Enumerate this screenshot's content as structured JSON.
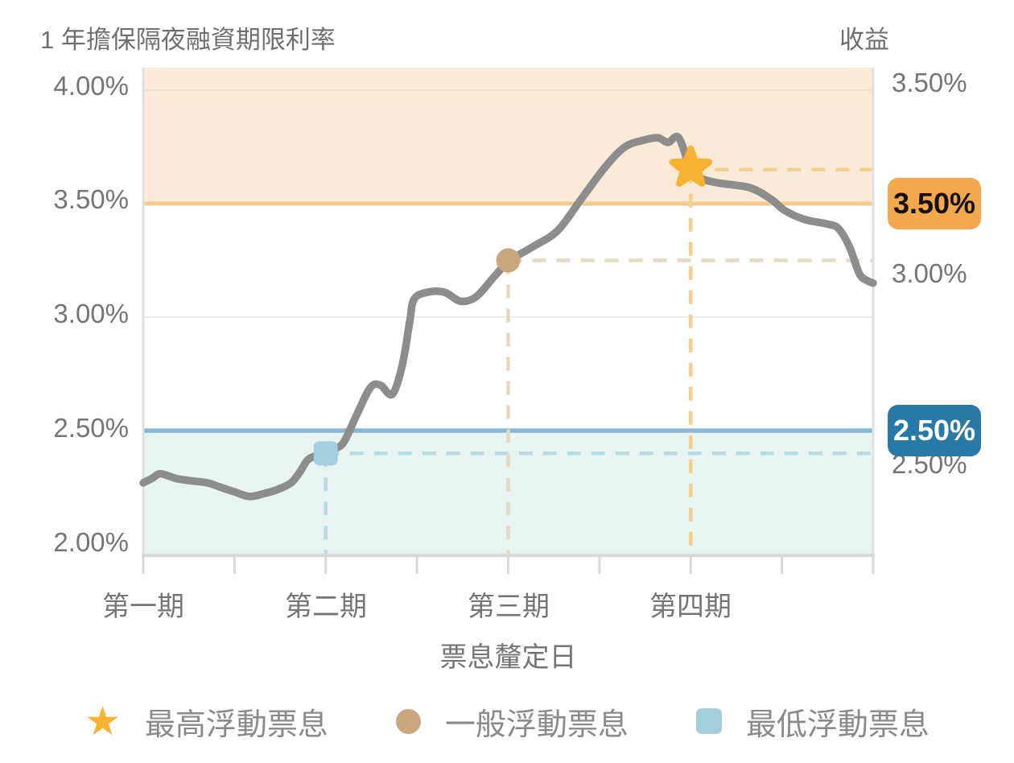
{
  "titles": {
    "left": "1 年擔保隔夜融資期限利率",
    "right": "收益"
  },
  "axes": {
    "left_ticks": [
      "4.00%",
      "3.50%",
      "3.00%",
      "2.50%",
      "2.00%"
    ],
    "right_ticks": [
      "3.50%",
      "3.00%",
      "2.50%"
    ],
    "x_labels": [
      "第一期",
      "第二期",
      "第三期",
      "第四期"
    ],
    "x_title": "票息釐定日"
  },
  "badges": {
    "cap": {
      "label": "3.50%"
    },
    "floor": {
      "label": "2.50%"
    }
  },
  "legend": [
    {
      "marker": "star",
      "label": "最高浮動票息",
      "color": "#f9b331"
    },
    {
      "marker": "circle",
      "label": "一般浮動票息",
      "color": "#c9a67e"
    },
    {
      "marker": "square",
      "label": "最低浮動票息",
      "color": "#a2cfdb"
    }
  ],
  "colors": {
    "line": "#8d8d8d",
    "cap_band": "#fcead9",
    "cap_line": "#f8c88c",
    "cap_grid": "#f4dec4",
    "floor_band": "#e8f4f2",
    "floor_line": "#8ab7d4",
    "grid": "#ededed",
    "axis": "#d9d9d9",
    "axis_side": "#e0e0e0",
    "badge_cap_bg": "#f5a84b",
    "badge_cap_fg": "#121212",
    "badge_floor_bg": "#2878a8",
    "badge_floor_fg": "#ffffff",
    "star": "#f9b331",
    "circle": "#c9a67e",
    "square": "#a2cfdb",
    "dash_star": "#f5cf8d",
    "dash_circle": "#e7d7c1",
    "dash_square": "#b5dde3"
  },
  "chart_data": {
    "type": "line",
    "x_axis": {
      "title": "票息釐定日",
      "range": [
        0,
        8
      ],
      "minor_tick_step": 1,
      "categories": [
        {
          "label": "第一期",
          "x": 0
        },
        {
          "label": "第二期",
          "x": 2
        },
        {
          "label": "第三期",
          "x": 4
        },
        {
          "label": "第四期",
          "x": 6
        }
      ]
    },
    "y_left_axis": {
      "title": "1 年擔保隔夜融資期限利率",
      "range": [
        2.0,
        4.0
      ],
      "ticks": [
        4.0,
        3.5,
        3.0,
        2.5,
        2.0
      ],
      "format": "percent"
    },
    "y_right_axis": {
      "title": "收益",
      "ticks": [
        3.5,
        3.0,
        2.5
      ],
      "format": "percent"
    },
    "cap": {
      "value": 3.5,
      "label": "3.50%"
    },
    "floor": {
      "value": 2.5,
      "label": "2.50%"
    },
    "bands": [
      {
        "from": 3.5,
        "to": 4.15,
        "role": "cap"
      },
      {
        "from": 1.93,
        "to": 2.5,
        "role": "floor"
      }
    ],
    "gridlines": [
      {
        "value": 4.0,
        "role": "cap_grid"
      },
      {
        "value": 3.0,
        "role": "grid"
      }
    ],
    "series": [
      {
        "name": "1 年擔保隔夜融資期限利率",
        "points": [
          [
            0.0,
            2.27
          ],
          [
            0.1,
            2.29
          ],
          [
            0.19,
            2.31
          ],
          [
            0.35,
            2.29
          ],
          [
            0.5,
            2.28
          ],
          [
            0.7,
            2.27
          ],
          [
            0.85,
            2.25
          ],
          [
            1.0,
            2.23
          ],
          [
            1.16,
            2.21
          ],
          [
            1.3,
            2.22
          ],
          [
            1.47,
            2.24
          ],
          [
            1.62,
            2.27
          ],
          [
            1.72,
            2.32
          ],
          [
            1.8,
            2.37
          ],
          [
            1.9,
            2.39
          ],
          [
            2.0,
            2.4
          ],
          [
            2.1,
            2.42
          ],
          [
            2.2,
            2.45
          ],
          [
            2.34,
            2.57
          ],
          [
            2.49,
            2.69
          ],
          [
            2.6,
            2.7
          ],
          [
            2.73,
            2.66
          ],
          [
            2.84,
            2.79
          ],
          [
            2.92,
            2.98
          ],
          [
            2.97,
            3.08
          ],
          [
            3.12,
            3.11
          ],
          [
            3.3,
            3.11
          ],
          [
            3.48,
            3.07
          ],
          [
            3.65,
            3.09
          ],
          [
            3.85,
            3.18
          ],
          [
            4.02,
            3.25
          ],
          [
            4.27,
            3.31
          ],
          [
            4.54,
            3.38
          ],
          [
            4.8,
            3.52
          ],
          [
            5.06,
            3.66
          ],
          [
            5.28,
            3.75
          ],
          [
            5.49,
            3.78
          ],
          [
            5.64,
            3.79
          ],
          [
            5.75,
            3.77
          ],
          [
            5.87,
            3.79
          ],
          [
            6.0,
            3.65
          ],
          [
            6.12,
            3.61
          ],
          [
            6.32,
            3.59
          ],
          [
            6.65,
            3.57
          ],
          [
            6.88,
            3.52
          ],
          [
            7.03,
            3.47
          ],
          [
            7.25,
            3.43
          ],
          [
            7.5,
            3.41
          ],
          [
            7.62,
            3.39
          ],
          [
            7.74,
            3.31
          ],
          [
            7.85,
            3.19
          ],
          [
            7.94,
            3.16
          ],
          [
            8.0,
            3.15
          ]
        ]
      }
    ],
    "markers": [
      {
        "type": "square",
        "name": "最低浮動票息",
        "x": 2.0,
        "value": 2.4
      },
      {
        "type": "circle",
        "name": "一般浮動票息",
        "x": 4.0,
        "value": 3.25
      },
      {
        "type": "star",
        "name": "最高浮動票息",
        "x": 6.0,
        "value": 3.65
      }
    ]
  }
}
